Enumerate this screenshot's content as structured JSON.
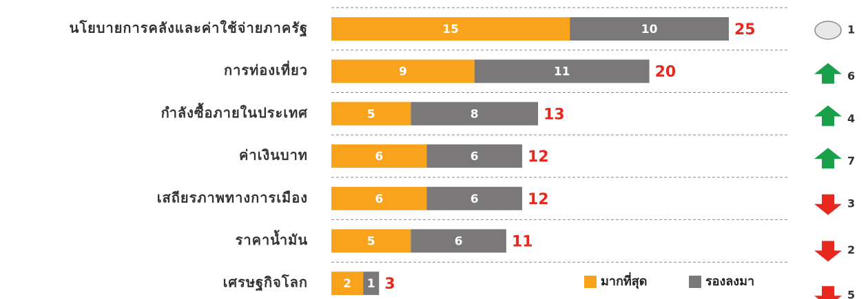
{
  "chart_data": {
    "type": "stacked-bar-horizontal",
    "categories": [
      "นโยบายการคลังและค่าใช้จ่ายภาครัฐ",
      "การท่องเที่ยว",
      "กำลังซื้อภายในประเทศ",
      "ค่าเงินบาท",
      "เสถียรภาพทางการเมือง",
      "ราคาน้ำมัน",
      "เศรษฐกิจโลก"
    ],
    "series": [
      {
        "name": "มากที่สุด",
        "color": "#f9a21b",
        "values": [
          15,
          9,
          5,
          6,
          6,
          5,
          2
        ]
      },
      {
        "name": "รองลงมา",
        "color": "#7a7878",
        "values": [
          10,
          11,
          8,
          6,
          6,
          6,
          1
        ]
      }
    ],
    "totals": [
      25,
      20,
      13,
      12,
      12,
      11,
      3
    ],
    "trend": [
      "flat",
      "up",
      "up",
      "up",
      "down",
      "down",
      "down"
    ],
    "rank": [
      1,
      6,
      4,
      7,
      3,
      2,
      5
    ],
    "grid": true,
    "legend": "bottom-right"
  }
}
